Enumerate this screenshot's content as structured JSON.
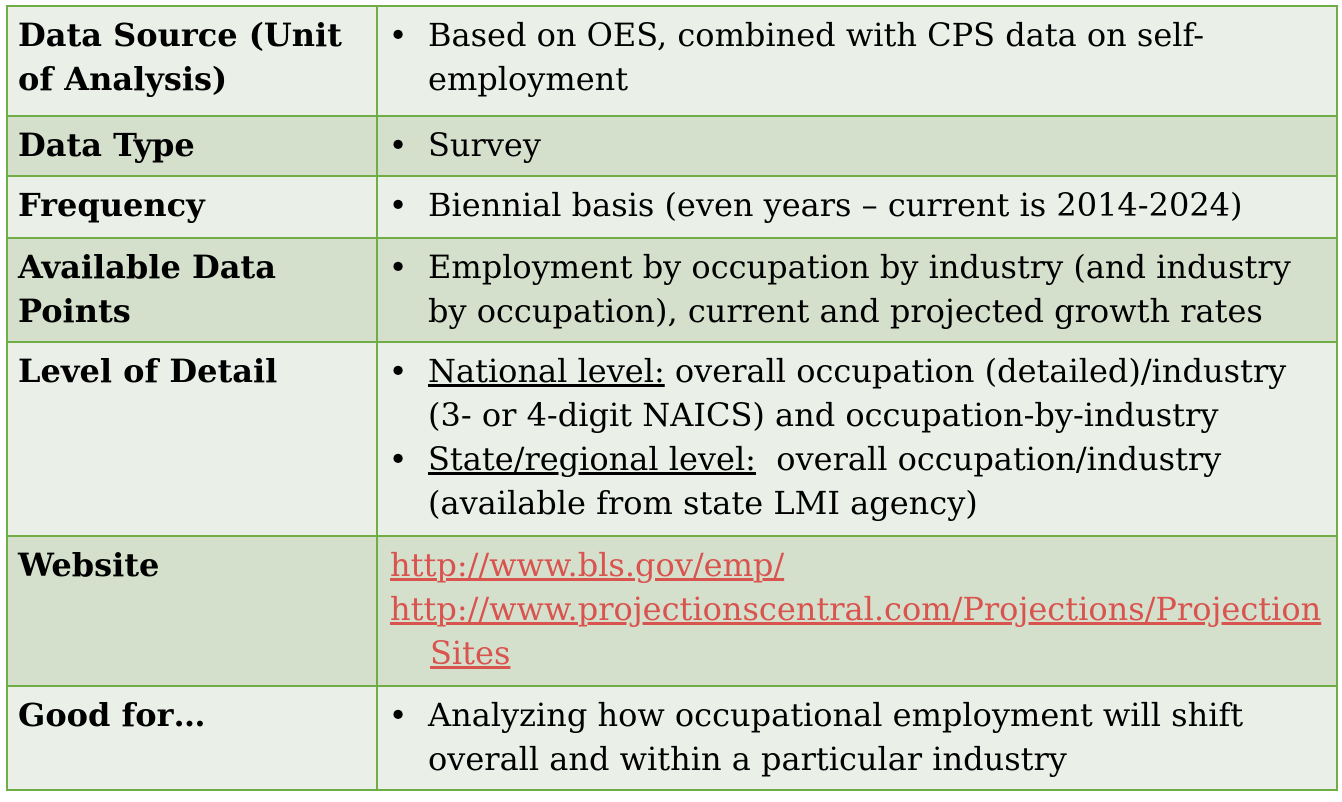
{
  "rows": [
    {
      "label": "Data Source (Unit of Analysis)",
      "bullets": [
        "Based on OES, combined with CPS data on self-employment"
      ]
    },
    {
      "label": "Data Type",
      "bullets": [
        "Survey"
      ]
    },
    {
      "label": "Frequency",
      "bullets": [
        "Biennial basis (even years – current is 2014-2024)"
      ]
    },
    {
      "label": "Available Data Points",
      "bullets": [
        "Employment by occupation by industry (and industry by occupation), current and projected growth rates"
      ]
    },
    {
      "label": "Level of Detail",
      "detail_items": [
        {
          "heading": "National level:",
          "text": " overall occupation (detailed)/industry (3- or 4-digit NAICS) and occupation-by-industry"
        },
        {
          "heading": "State/regional level:",
          "text": "  overall occupation/industry (available from state LMI agency)"
        }
      ]
    },
    {
      "label": "Website",
      "links": [
        "http://www.bls.gov/emp/",
        "http://www.projectionscentral.com/Projections/ProjectionSites"
      ]
    },
    {
      "label": "Good for…",
      "bullets": [
        "Analyzing how occupational employment will shift overall and within a particular industry"
      ]
    }
  ],
  "bullet_glyph": "•",
  "colors": {
    "border": "#70ad47",
    "row_light": "#eaf0e8",
    "row_dark": "#d4e0cc",
    "link": "#d9534f"
  }
}
